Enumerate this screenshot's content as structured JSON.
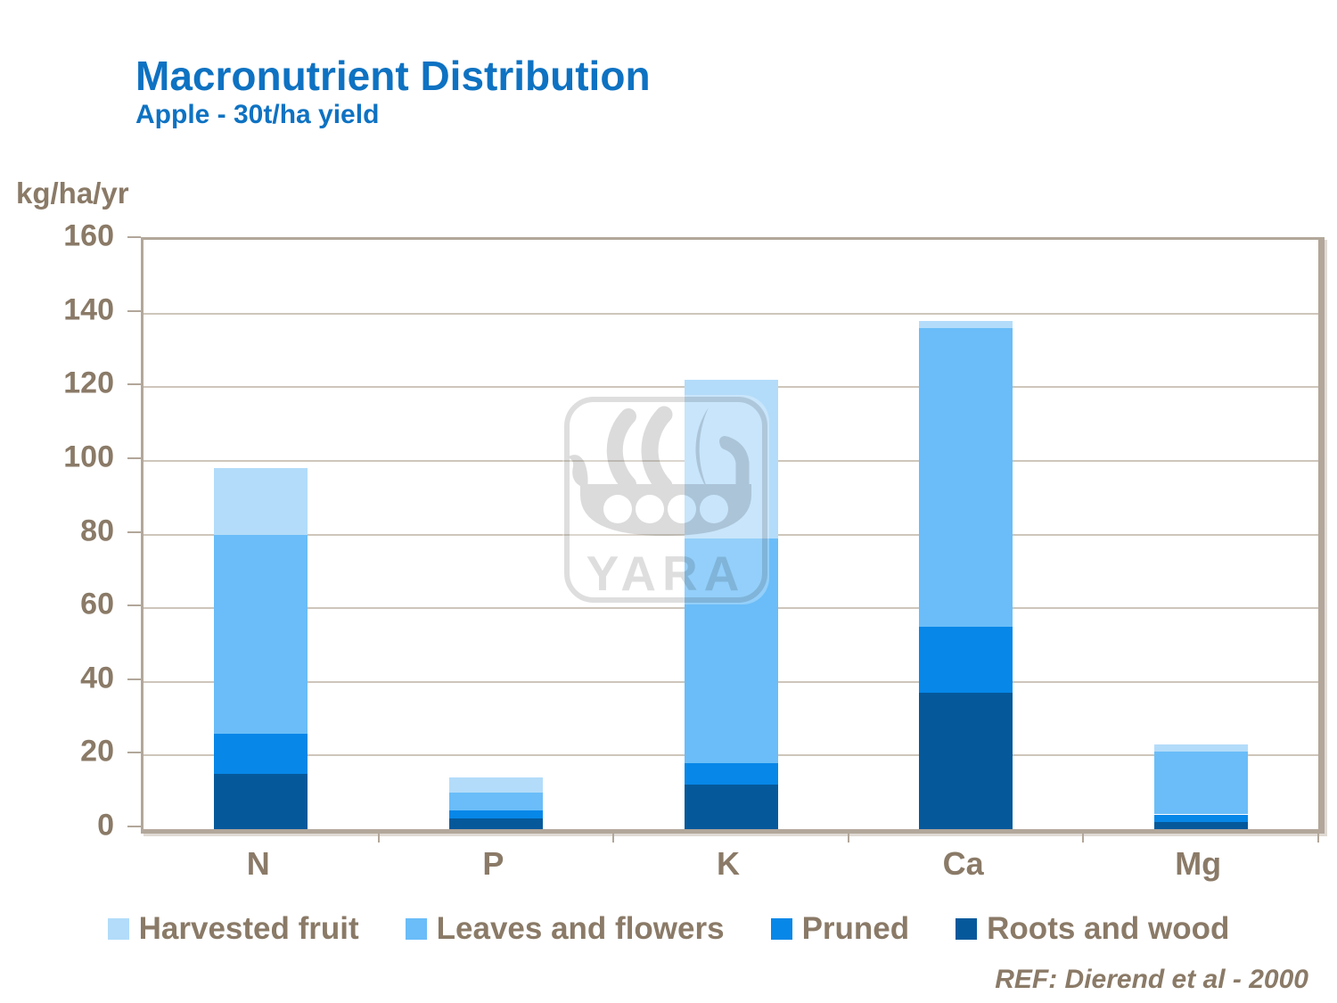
{
  "chart_data": {
    "type": "bar",
    "stacked": true,
    "title": "Macronutrient Distribution",
    "subtitle": "Apple - 30t/ha yield",
    "y_axis_title": "kg/ha/yr",
    "categories": [
      "N",
      "P",
      "K",
      "Ca",
      "Mg"
    ],
    "series": [
      {
        "name": "Harvested fruit",
        "color": "#B3DCFA",
        "values": [
          18,
          4,
          43,
          2,
          2
        ]
      },
      {
        "name": "Leaves and flowers",
        "color": "#6ABDF8",
        "values": [
          54,
          5,
          61,
          81,
          17
        ]
      },
      {
        "name": "Pruned",
        "color": "#0787E8",
        "values": [
          11,
          2,
          6,
          18,
          2
        ]
      },
      {
        "name": "Roots and wood",
        "color": "#05599B",
        "values": [
          15,
          3,
          12,
          37,
          2
        ]
      }
    ],
    "ylim": [
      0,
      160
    ],
    "yticks": [
      0,
      20,
      40,
      60,
      80,
      100,
      120,
      140,
      160
    ],
    "ytick_step": 20,
    "grid": true,
    "legend_position": "bottom"
  },
  "footer": {
    "reference": "REF: Dierend et al - 2000"
  },
  "watermark": {
    "text": "YARA",
    "icon": "viking-ship-logo-icon"
  },
  "colors": {
    "title_blue": "#0E72C2",
    "axis_text_brown": "#8A7A67",
    "gridline": "#C6BCAF",
    "plot_border": "#B2A79A",
    "watermark_gray": "#DBDBDB"
  }
}
